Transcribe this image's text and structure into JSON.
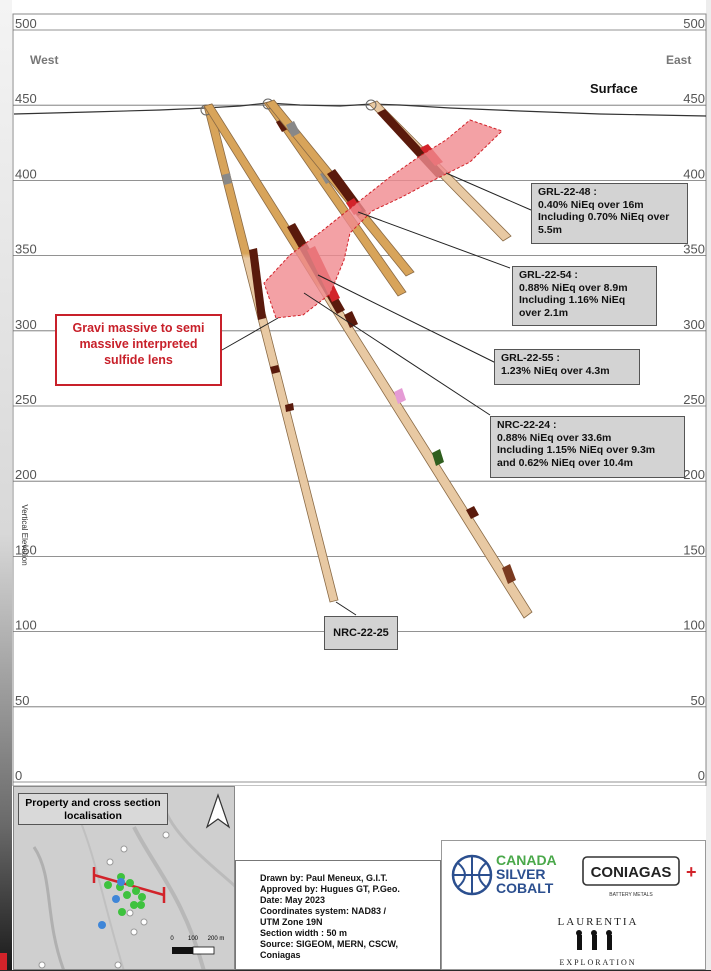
{
  "section": {
    "y_axis": {
      "label": "Vertical Elevation",
      "ticks": [
        "500",
        "450",
        "400",
        "350",
        "300",
        "250",
        "200",
        "150",
        "100",
        "50",
        "0"
      ]
    },
    "west_label": "West",
    "east_label": "East",
    "surface_label": "Surface"
  },
  "callouts": {
    "grl_22_48": {
      "lines": [
        "GRL-22-48 :",
        "0.40% NiEq over 16m",
        "Including 0.70% NiEq over",
        "5.5m"
      ]
    },
    "grl_22_54": {
      "lines": [
        "GRL-22-54 :",
        "0.88% NiEq over 8.9m",
        "Including 1.16% NiEq",
        "over 2.1m"
      ]
    },
    "grl_22_55": {
      "lines": [
        "GRL-22-55 :",
        "1.23% NiEq over 4.3m"
      ]
    },
    "nrc_22_24": {
      "lines": [
        "NRC-22-24 :",
        "0.88% NiEq over 33.6m",
        "Including 1.15% NiEq over 9.3m",
        "and 0.62% NiEq over 10.4m"
      ]
    },
    "nrc_22_25": {
      "lines": [
        "NRC-22-25"
      ]
    },
    "gravi_lens": {
      "lines": [
        "Gravi massive to semi",
        "massive interpreted",
        "sulfide lens"
      ]
    }
  },
  "inset": {
    "title_lines": [
      "Property and cross section",
      "localisation"
    ],
    "scale_labels": [
      "0",
      "100",
      "200 m"
    ]
  },
  "notes": {
    "lines": [
      "Drawn by: Paul Meneux, G.I.T.",
      "Approved by: Hugues GT, P.Geo.",
      "Date: May 2023",
      "Coordinates system: NAD83 /",
      "UTM Zone 19N",
      "Section width : 50 m",
      "Source: SIGEOM, MERN, CSCW,",
      "Coniagas"
    ]
  },
  "logos": {
    "canada_silver_cobalt": [
      "CANADA",
      "SILVER",
      "COBALT"
    ],
    "coniagas": "CONIAGAS",
    "coniagas_plus": "+",
    "coniagas_sub": "BATTERY METALS",
    "laurentia": "LAURENTIA",
    "laurentia_sub": "EXPLORATION"
  },
  "colors": {
    "lens_fill": "#f08a8e",
    "lens_border": "#d2232a",
    "hole_brown": "#d4a06a",
    "hole_tan": "#e8c9a3",
    "core_dark": "#5a1a0c",
    "callout_bg": "#d3d3d3",
    "gravi_red": "#c8202a"
  }
}
